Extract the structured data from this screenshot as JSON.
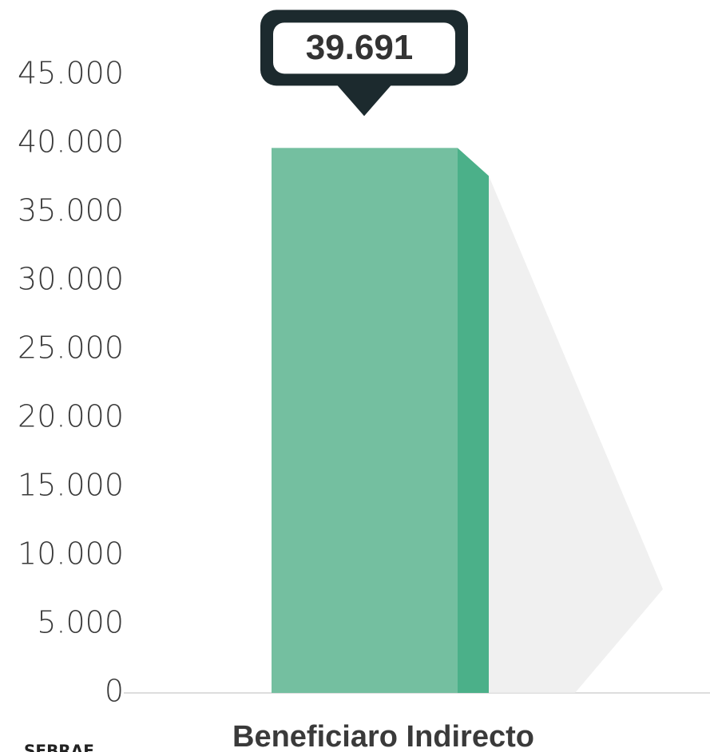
{
  "chart_data": {
    "type": "bar",
    "categories": [
      "Beneficiaro Indirecto"
    ],
    "values": [
      39691
    ],
    "value_labels": [
      "39.691"
    ],
    "color": "#74bfa0",
    "ylim": [
      0,
      45000
    ],
    "yticks": [
      0,
      {
        "value": 5000,
        "label": "5.000"
      },
      {
        "value": 10000,
        "label": "10.000"
      },
      {
        "value": 15000,
        "label": "15.000"
      },
      {
        "value": 20000,
        "label": "20.000"
      },
      {
        "value": 25000,
        "label": "25.000"
      },
      {
        "value": 30000,
        "label": "30.000"
      },
      {
        "value": 35000,
        "label": "35.000"
      },
      {
        "value": 40000,
        "label": "40.000"
      },
      {
        "value": 45000,
        "label": "45.000"
      }
    ],
    "source": "SEBRAE"
  }
}
